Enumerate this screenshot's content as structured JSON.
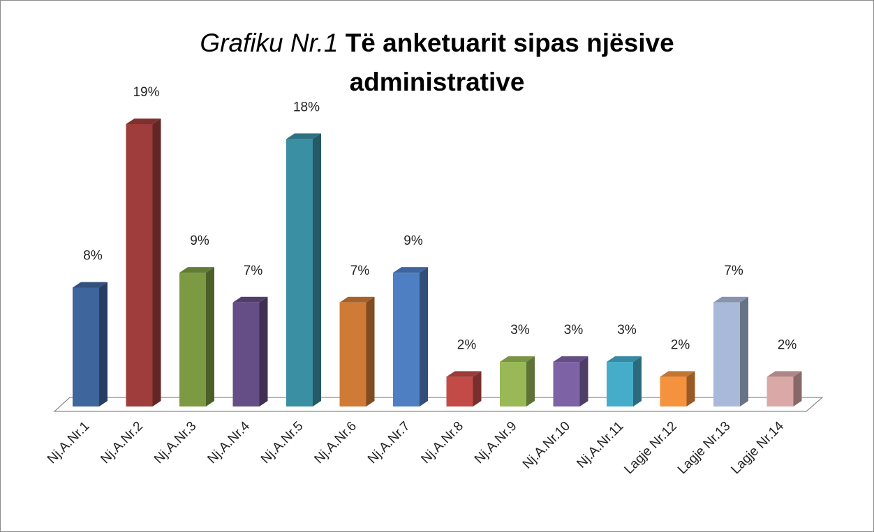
{
  "chart_data": {
    "type": "bar3d",
    "title": {
      "italic": "Grafiku Nr.1",
      "bold": "Të anketuarit sipas njësive administrative"
    },
    "categories": [
      "Nj.A.Nr.1",
      "Nj.A.Nr.2",
      "Nj.A.Nr.3",
      "Nj.A.Nr.4",
      "Nj.A.Nr.5",
      "Nj.A.Nr.6",
      "Nj.A.Nr.7",
      "Nj.A.Nr.8",
      "Nj.A.Nr.9",
      "Nj.A.Nr.10",
      "Nj.A.Nr.11",
      "Lagje Nr.12",
      "Lagje Nr.13",
      "Lagje Nr.14"
    ],
    "values": [
      8,
      19,
      9,
      7,
      18,
      7,
      9,
      2,
      3,
      3,
      3,
      2,
      7,
      2
    ],
    "value_labels": [
      "8%",
      "19%",
      "9%",
      "7%",
      "18%",
      "7%",
      "9%",
      "2%",
      "3%",
      "3%",
      "3%",
      "2%",
      "7%",
      "2%"
    ],
    "colors": [
      "#3e659c",
      "#9e3d3b",
      "#7b9a42",
      "#654d86",
      "#3a8fa3",
      "#cf7b35",
      "#4f7fc3",
      "#c24b48",
      "#98b956",
      "#7e62a6",
      "#45adc9",
      "#f5923d",
      "#a8b9da",
      "#dba8a8"
    ]
  }
}
